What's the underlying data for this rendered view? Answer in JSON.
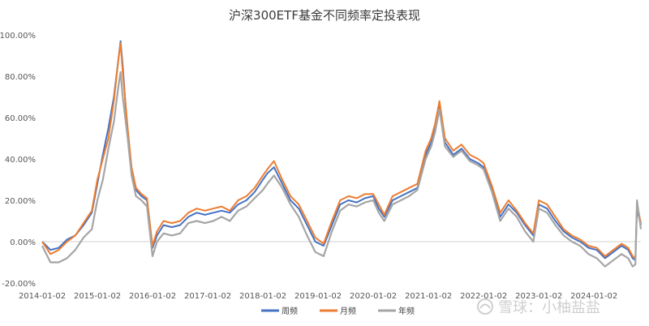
{
  "chart_data": {
    "type": "line",
    "title": "沪深300ETF基金不同频率定投表现",
    "xlabel": "",
    "ylabel": "",
    "x_ticks": [
      "2014-01-02",
      "2015-01-02",
      "2016-01-02",
      "2017-01-02",
      "2018-01-02",
      "2019-01-02",
      "2020-01-02",
      "2021-01-02",
      "2022-01-02",
      "2023-01-02",
      "2024-01-02"
    ],
    "y_ticks": [
      "-20.00%",
      "0.00%",
      "20.00%",
      "40.00%",
      "60.00%",
      "80.00%",
      "100.00%"
    ],
    "ylim": [
      -20,
      100
    ],
    "xlim": [
      2014.0,
      2024.85
    ],
    "grid": false,
    "legend_position": "bottom",
    "x": [
      2014.0,
      2014.15,
      2014.3,
      2014.45,
      2014.6,
      2014.75,
      2014.9,
      2015.0,
      2015.1,
      2015.2,
      2015.3,
      2015.38,
      2015.42,
      2015.46,
      2015.55,
      2015.62,
      2015.7,
      2015.8,
      2015.9,
      2016.0,
      2016.08,
      2016.2,
      2016.35,
      2016.5,
      2016.65,
      2016.8,
      2016.95,
      2017.1,
      2017.25,
      2017.4,
      2017.55,
      2017.7,
      2017.85,
      2018.0,
      2018.08,
      2018.2,
      2018.35,
      2018.5,
      2018.65,
      2018.8,
      2018.95,
      2019.1,
      2019.25,
      2019.4,
      2019.55,
      2019.7,
      2019.85,
      2020.0,
      2020.1,
      2020.2,
      2020.35,
      2020.5,
      2020.65,
      2020.8,
      2020.95,
      2021.05,
      2021.12,
      2021.2,
      2021.3,
      2021.45,
      2021.6,
      2021.75,
      2021.9,
      2022.0,
      2022.15,
      2022.3,
      2022.45,
      2022.6,
      2022.75,
      2022.9,
      2023.0,
      2023.15,
      2023.3,
      2023.45,
      2023.6,
      2023.75,
      2023.9,
      2024.05,
      2024.2,
      2024.35,
      2024.5,
      2024.62,
      2024.7,
      2024.75,
      2024.78,
      2024.85
    ],
    "series": [
      {
        "name": "周频",
        "color": "#4472c4",
        "values": [
          0,
          -4,
          -3,
          1,
          3,
          8,
          14,
          28,
          42,
          55,
          70,
          88,
          97,
          85,
          52,
          35,
          25,
          22,
          20,
          -3,
          3,
          8,
          7,
          8,
          12,
          14,
          13,
          14,
          15,
          14,
          18,
          20,
          24,
          30,
          33,
          36,
          28,
          20,
          16,
          8,
          0,
          -2,
          8,
          18,
          20,
          19,
          21,
          22,
          16,
          12,
          20,
          22,
          24,
          26,
          42,
          48,
          55,
          66,
          48,
          42,
          45,
          40,
          38,
          36,
          25,
          12,
          18,
          14,
          8,
          3,
          18,
          16,
          10,
          5,
          2,
          0,
          -3,
          -4,
          -8,
          -5,
          -2,
          -4,
          -8,
          -9,
          16,
          8
        ]
      },
      {
        "name": "月频",
        "color": "#ed7d31",
        "values": [
          0,
          -6,
          -4,
          0,
          3,
          9,
          15,
          30,
          40,
          50,
          68,
          88,
          96,
          82,
          55,
          36,
          26,
          23,
          21,
          -2,
          5,
          10,
          9,
          10,
          14,
          16,
          15,
          16,
          17,
          15,
          20,
          22,
          26,
          32,
          35,
          39,
          30,
          22,
          18,
          10,
          2,
          -1,
          10,
          20,
          22,
          21,
          23,
          23,
          18,
          13,
          22,
          24,
          26,
          28,
          44,
          50,
          57,
          68,
          50,
          44,
          47,
          42,
          40,
          38,
          27,
          14,
          20,
          15,
          9,
          4,
          20,
          18,
          12,
          6,
          3,
          1,
          -2,
          -3,
          -7,
          -4,
          -1,
          -3,
          -7,
          -8,
          18,
          9
        ]
      },
      {
        "name": "年频",
        "color": "#a5a5a5",
        "values": [
          -2,
          -10,
          -10,
          -8,
          -4,
          2,
          6,
          20,
          30,
          45,
          58,
          75,
          82,
          70,
          50,
          32,
          22,
          20,
          17,
          -7,
          0,
          4,
          3,
          4,
          9,
          10,
          9,
          10,
          12,
          10,
          15,
          17,
          21,
          25,
          28,
          32,
          26,
          18,
          12,
          3,
          -5,
          -7,
          5,
          15,
          18,
          17,
          19,
          20,
          14,
          10,
          18,
          20,
          22,
          25,
          40,
          46,
          53,
          64,
          46,
          41,
          44,
          39,
          37,
          35,
          24,
          10,
          16,
          12,
          5,
          0,
          16,
          14,
          8,
          3,
          0,
          -2,
          -6,
          -8,
          -12,
          -9,
          -6,
          -8,
          -12,
          -11,
          20,
          6
        ]
      }
    ]
  },
  "watermark": {
    "text": "雪球：小柚盐盐",
    "icon": "snowball-logo-icon"
  }
}
